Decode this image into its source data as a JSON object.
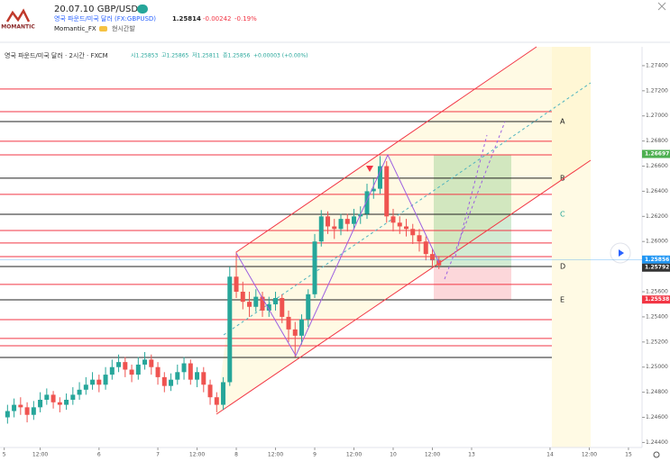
{
  "chart_data": {
    "type": "candlestick",
    "title": "20.07.10 GBP/USD",
    "logo": "MOMANTIC",
    "symbol_name": "영국 파운드/미국 달러 (FX:GBPUSD)",
    "price": 1.25814,
    "change": -0.00242,
    "change_pct": {
      "value": -0.19,
      "label": "-0.19%"
    },
    "author": "Momantic_FX",
    "author_note": "현시간발",
    "legend_text": "영국 파운드/미국 달러 · 2시간 · FXCM",
    "ohlc_legend": [
      "시1.25853",
      "고1.25865",
      "저1.25811",
      "종1.25856",
      "+0.00003 (+0.00%)"
    ],
    "up_color": "#26a69a",
    "down_color": "#ef5350",
    "x": [
      -70,
      -68,
      -66,
      -64,
      -62,
      -60,
      -58,
      -56,
      -54,
      -52,
      -50,
      -48,
      -46,
      -44,
      -42,
      -40,
      -38,
      -36,
      -34,
      -32,
      -30,
      -28,
      -26,
      -24,
      -22,
      -20,
      -18,
      -16,
      -14,
      -12,
      -10,
      -8,
      -6,
      -4,
      -2,
      0,
      2,
      4,
      6,
      8,
      10,
      12,
      14,
      16,
      18,
      20,
      22,
      24,
      26,
      28,
      30,
      32,
      34,
      36,
      38,
      40,
      42,
      44,
      46,
      48,
      50,
      52,
      54,
      56,
      58,
      60,
      62
    ],
    "open": [
      1.246,
      1.2465,
      1.247,
      1.2468,
      1.2462,
      1.2468,
      1.2474,
      1.2478,
      1.2472,
      1.247,
      1.2474,
      1.2478,
      1.2482,
      1.2486,
      1.249,
      1.2486,
      1.2494,
      1.25,
      1.2504,
      1.2498,
      1.2494,
      1.2502,
      1.2506,
      1.25,
      1.2492,
      1.2485,
      1.249,
      1.2496,
      1.2503,
      1.249,
      1.2496,
      1.2486,
      1.2476,
      1.247,
      1.2488,
      1.2572,
      1.256,
      1.2552,
      1.2548,
      1.2556,
      1.2545,
      1.255,
      1.2555,
      1.254,
      1.253,
      1.2525,
      1.2538,
      1.2558,
      1.26,
      1.262,
      1.2612,
      1.261,
      1.2618,
      1.2614,
      1.262,
      1.2622,
      1.264,
      1.2642,
      1.266,
      1.262,
      1.2615,
      1.2612,
      1.261,
      1.2605,
      1.26,
      1.259,
      1.2585
    ],
    "high": [
      1.247,
      1.2475,
      1.2476,
      1.2472,
      1.2473,
      1.248,
      1.2483,
      1.2481,
      1.2476,
      1.2479,
      1.2484,
      1.2488,
      1.2492,
      1.2496,
      1.2494,
      1.25,
      1.2506,
      1.251,
      1.2508,
      1.2502,
      1.2508,
      1.2512,
      1.251,
      1.2504,
      1.2496,
      1.2495,
      1.2502,
      1.2508,
      1.2506,
      1.25,
      1.25,
      1.249,
      1.248,
      1.2492,
      1.258,
      1.2592,
      1.2568,
      1.256,
      1.2562,
      1.256,
      1.2556,
      1.256,
      1.2558,
      1.2545,
      1.2536,
      1.2542,
      1.2562,
      1.2606,
      1.2625,
      1.2624,
      1.2618,
      1.2622,
      1.2622,
      1.2626,
      1.2628,
      1.2646,
      1.265,
      1.2668,
      1.2664,
      1.2626,
      1.262,
      1.2618,
      1.2614,
      1.261,
      1.2604,
      1.2594,
      1.2588
    ],
    "low": [
      1.2455,
      1.246,
      1.2462,
      1.2456,
      1.2458,
      1.2464,
      1.247,
      1.2467,
      1.2464,
      1.2466,
      1.247,
      1.2474,
      1.2478,
      1.2482,
      1.248,
      1.2482,
      1.249,
      1.2496,
      1.2492,
      1.2488,
      1.249,
      1.2498,
      1.2494,
      1.2486,
      1.248,
      1.2481,
      1.2486,
      1.249,
      1.2486,
      1.2484,
      1.248,
      1.247,
      1.2464,
      1.2466,
      1.2485,
      1.2555,
      1.2546,
      1.254,
      1.2544,
      1.254,
      1.254,
      1.2545,
      1.2535,
      1.252,
      1.2508,
      1.2518,
      1.2532,
      1.2555,
      1.2596,
      1.2606,
      1.2602,
      1.2605,
      1.2608,
      1.261,
      1.2614,
      1.2618,
      1.2634,
      1.2638,
      1.2615,
      1.2608,
      1.2606,
      1.2604,
      1.2598,
      1.2592,
      1.2585,
      1.258,
      1.2578
    ],
    "close": [
      1.2465,
      1.247,
      1.2468,
      1.2462,
      1.2468,
      1.2474,
      1.2478,
      1.2472,
      1.247,
      1.2474,
      1.2478,
      1.2482,
      1.2486,
      1.249,
      1.2486,
      1.2494,
      1.25,
      1.2504,
      1.2498,
      1.2494,
      1.2502,
      1.2506,
      1.25,
      1.2492,
      1.2485,
      1.249,
      1.2496,
      1.2503,
      1.249,
      1.2496,
      1.2486,
      1.2476,
      1.247,
      1.2488,
      1.2572,
      1.256,
      1.2552,
      1.2548,
      1.2556,
      1.2545,
      1.255,
      1.2555,
      1.254,
      1.253,
      1.2525,
      1.2538,
      1.2558,
      1.26,
      1.262,
      1.2612,
      1.261,
      1.2618,
      1.2614,
      1.262,
      1.2622,
      1.264,
      1.2642,
      1.266,
      1.262,
      1.2615,
      1.2612,
      1.261,
      1.2605,
      1.26,
      1.259,
      1.2585,
      1.2581
    ],
    "xlim": [
      -72.3,
      123.6
    ],
    "ylim": [
      1.2436,
      1.2755
    ],
    "xticks": [
      {
        "value": -71,
        "label": "5"
      },
      {
        "value": -60,
        "label": "12:00"
      },
      {
        "value": -42,
        "label": "6"
      },
      {
        "value": -24,
        "label": "7"
      },
      {
        "value": -12,
        "label": "12:00"
      },
      {
        "value": 0,
        "label": "8"
      },
      {
        "value": 12,
        "label": "12:00"
      },
      {
        "value": 24,
        "label": "9"
      },
      {
        "value": 36,
        "label": "12:00"
      },
      {
        "value": 48,
        "label": "10"
      },
      {
        "value": 60,
        "label": "12:00"
      },
      {
        "value": 72,
        "label": "13"
      },
      {
        "value": 96,
        "label": "14"
      },
      {
        "value": 108,
        "label": "12:00"
      },
      {
        "value": 120,
        "label": "15"
      }
    ],
    "yticks": [
      {
        "value": 1.274,
        "label": "1.27400"
      },
      {
        "value": 1.272,
        "label": "1.27200"
      },
      {
        "value": 1.27,
        "label": "1.27000"
      },
      {
        "value": 1.268,
        "label": "1.26800"
      },
      {
        "value": 1.266,
        "label": "1.26600"
      },
      {
        "value": 1.264,
        "label": "1.26400"
      },
      {
        "value": 1.262,
        "label": "1.26200"
      },
      {
        "value": 1.26,
        "label": "1.26000"
      },
      {
        "value": 1.256,
        "label": "1.25600"
      },
      {
        "value": 1.254,
        "label": "1.25400"
      },
      {
        "value": 1.252,
        "label": "1.25200"
      },
      {
        "value": 1.25,
        "label": "1.25000"
      },
      {
        "value": 1.248,
        "label": "1.24800"
      },
      {
        "value": 1.246,
        "label": "1.24600"
      },
      {
        "value": 1.244,
        "label": "1.24400"
      }
    ],
    "levels": [
      {
        "price": 1.27214,
        "color": "#f23645"
      },
      {
        "price": 1.27034,
        "color": "#f23645"
      },
      {
        "price": 1.26955,
        "color": "#222222",
        "label": "A",
        "label_color": "#222222"
      },
      {
        "price": 1.26798,
        "color": "#f23645"
      },
      {
        "price": 1.2669,
        "color": "#f23645"
      },
      {
        "price": 1.26504,
        "color": "#222222",
        "label": "B",
        "label_color": "#222222"
      },
      {
        "price": 1.26375,
        "color": "#f23645"
      },
      {
        "price": 1.26217,
        "color": "#222222",
        "label": "C",
        "label_color": "#26a69a"
      },
      {
        "price": 1.26088,
        "color": "#f23645"
      },
      {
        "price": 1.25988,
        "color": "#f23645"
      },
      {
        "price": 1.2588,
        "color": "#f23645"
      },
      {
        "price": 1.25801,
        "color": "#222222",
        "label": "D",
        "label_color": "#222222"
      },
      {
        "price": 1.25658,
        "color": "#f23645"
      },
      {
        "price": 1.25536,
        "color": "#222222",
        "label": "E",
        "label_color": "#222222"
      },
      {
        "price": 1.25378,
        "color": "#f23645"
      },
      {
        "price": 1.25228,
        "color": "#f23645"
      },
      {
        "price": 1.2517,
        "color": "#f23645"
      },
      {
        "price": 1.25077,
        "color": "#222222"
      }
    ],
    "price_labels": [
      {
        "value": 1.26697,
        "color": "#4caf50"
      },
      {
        "value": 1.25856,
        "color": "#2196f3"
      },
      {
        "value": 1.25792,
        "color": "#333333"
      },
      {
        "value": 1.25538,
        "color": "#f23645"
      }
    ],
    "grid": false
  }
}
